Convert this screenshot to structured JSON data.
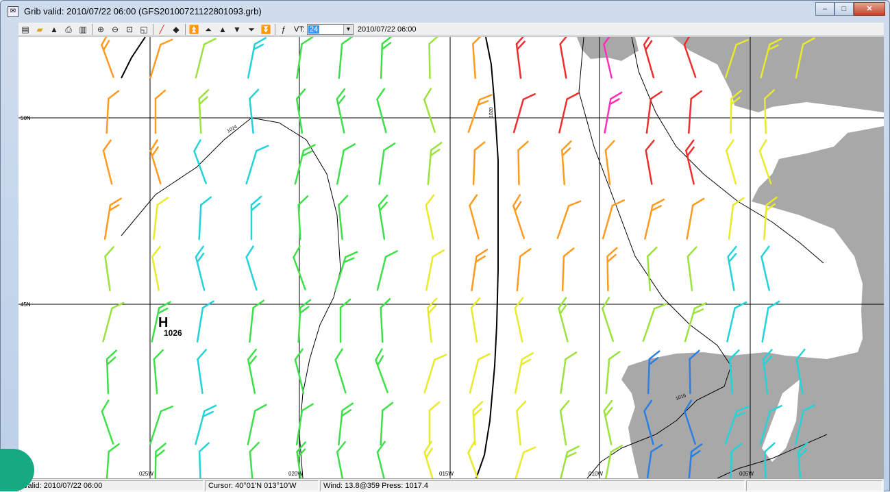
{
  "window": {
    "title": "Grib valid: 2010/07/22 06:00 (GFS20100721122801093.grb)",
    "controls": {
      "minimize": "–",
      "maximize": "□",
      "close": "✕"
    }
  },
  "toolbar": {
    "icons": [
      "properties-icon",
      "open-folder-icon",
      "export-icon",
      "print-icon",
      "delete-icon",
      "zoom-in-icon",
      "zoom-out-icon",
      "zoom-extent-icon",
      "zoom-window-icon",
      "pencil-icon",
      "diamond-icon",
      "first-icon",
      "prev-fast-icon",
      "prev-icon",
      "next-icon",
      "next-fast-icon",
      "last-icon",
      "wind-barb-icon"
    ],
    "vt_label": "VT:",
    "vt_value": "24",
    "vt_date": "2010/07/22 06:00"
  },
  "map": {
    "lat_labels": [
      "50N",
      "45N"
    ],
    "lon_labels": [
      "025W",
      "020W",
      "015W",
      "010W",
      "005W"
    ],
    "pressure_high_label": "H",
    "pressure_high_value": "1026",
    "isobar_labels": [
      "1024",
      "1020",
      "1016"
    ],
    "colors": {
      "land": "#a8a8a8",
      "grid": "#000000",
      "isobar": "#000000"
    }
  },
  "statusbar": {
    "valid": "Valid: 2010/07/22 06:00",
    "cursor": "Cursor: 40°01'N 013°10'W",
    "wind": "Wind: 13.8@359  Press: 1017.4"
  }
}
